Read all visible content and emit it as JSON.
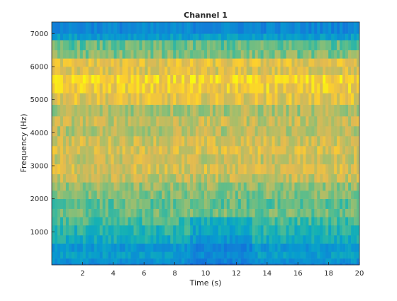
{
  "chart_data": {
    "type": "heatmap",
    "title": "Channel 1",
    "xlabel": "Time (s)",
    "ylabel": "Frequency (Hz)",
    "xlim": [
      0,
      20
    ],
    "ylim": [
      0,
      7350
    ],
    "x_ticks": [
      2,
      4,
      6,
      8,
      10,
      12,
      14,
      16,
      18,
      20
    ],
    "y_ticks": [
      1000,
      2000,
      3000,
      4000,
      5000,
      6000,
      7000
    ],
    "colormap": "parula",
    "grid": false,
    "legend": "none",
    "frequency_bands": [
      {
        "f0": 0,
        "f1": 50,
        "level": 0.3
      },
      {
        "f0": 50,
        "f1": 200,
        "level": 0.4
      },
      {
        "f0": 200,
        "f1": 400,
        "level": 0.45
      },
      {
        "f0": 400,
        "f1": 650,
        "level": 0.42
      },
      {
        "f0": 650,
        "f1": 900,
        "level": 0.52
      },
      {
        "f0": 900,
        "f1": 1200,
        "level": 0.56
      },
      {
        "f0": 1200,
        "f1": 1450,
        "level": 0.62
      },
      {
        "f0": 1450,
        "f1": 1700,
        "level": 0.68
      },
      {
        "f0": 1700,
        "f1": 2000,
        "level": 0.66
      },
      {
        "f0": 2000,
        "f1": 2250,
        "level": 0.7
      },
      {
        "f0": 2250,
        "f1": 2500,
        "level": 0.73
      },
      {
        "f0": 2500,
        "f1": 2750,
        "level": 0.8
      },
      {
        "f0": 2750,
        "f1": 3050,
        "level": 0.83
      },
      {
        "f0": 3050,
        "f1": 3350,
        "level": 0.81
      },
      {
        "f0": 3350,
        "f1": 3600,
        "level": 0.84
      },
      {
        "f0": 3600,
        "f1": 3900,
        "level": 0.82
      },
      {
        "f0": 3900,
        "f1": 4200,
        "level": 0.78
      },
      {
        "f0": 4200,
        "f1": 4500,
        "level": 0.8
      },
      {
        "f0": 4500,
        "f1": 4850,
        "level": 0.76
      },
      {
        "f0": 4850,
        "f1": 5200,
        "level": 0.86
      },
      {
        "f0": 5200,
        "f1": 5500,
        "level": 0.9
      },
      {
        "f0": 5500,
        "f1": 5750,
        "level": 0.92
      },
      {
        "f0": 5750,
        "f1": 6000,
        "level": 0.84
      },
      {
        "f0": 6000,
        "f1": 6250,
        "level": 0.86
      },
      {
        "f0": 6250,
        "f1": 6500,
        "level": 0.7
      },
      {
        "f0": 6500,
        "f1": 6800,
        "level": 0.66
      },
      {
        "f0": 6800,
        "f1": 7000,
        "level": 0.45
      },
      {
        "f0": 7000,
        "f1": 7350,
        "level": 0.35
      }
    ]
  }
}
